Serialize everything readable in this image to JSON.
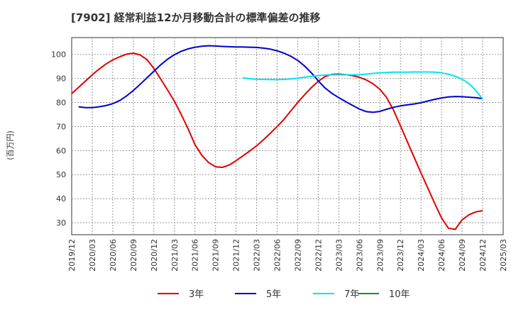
{
  "chart_data": {
    "type": "line",
    "title": "[7902]  経常利益12か月移動合計の標準偏差の推移",
    "ylabel": "(百万円)",
    "xlabel": "",
    "ylim": [
      25,
      107
    ],
    "yticks": [
      30,
      40,
      50,
      60,
      70,
      80,
      90,
      100
    ],
    "xticks": [
      "2019/12",
      "2020/03",
      "2020/06",
      "2020/09",
      "2020/12",
      "2021/03",
      "2021/06",
      "2021/09",
      "2021/12",
      "2022/03",
      "2022/06",
      "2022/09",
      "2022/12",
      "2023/03",
      "2023/06",
      "2023/09",
      "2023/12",
      "2024/03",
      "2024/06",
      "2024/09",
      "2024/12",
      "2025/03"
    ],
    "grid": true,
    "legend_position": "bottom",
    "series": [
      {
        "name": "3年",
        "color": "#e00000",
        "points": [
          [
            "2019/12",
            83.7
          ],
          [
            "2020/01",
            86.3
          ],
          [
            "2020/02",
            88.9
          ],
          [
            "2020/03",
            91.5
          ],
          [
            "2020/04",
            93.9
          ],
          [
            "2020/05",
            96.0
          ],
          [
            "2020/06",
            97.7
          ],
          [
            "2020/07",
            99.0
          ],
          [
            "2020/08",
            100.1
          ],
          [
            "2020/09",
            100.5
          ],
          [
            "2020/10",
            99.8
          ],
          [
            "2020/11",
            97.8
          ],
          [
            "2020/12",
            94.2
          ],
          [
            "2021/01",
            89.7
          ],
          [
            "2021/02",
            85.2
          ],
          [
            "2021/03",
            80.5
          ],
          [
            "2021/04",
            75.0
          ],
          [
            "2021/05",
            69.0
          ],
          [
            "2021/06",
            62.5
          ],
          [
            "2021/07",
            58.0
          ],
          [
            "2021/08",
            55.0
          ],
          [
            "2021/09",
            53.3
          ],
          [
            "2021/10",
            53.0
          ],
          [
            "2021/11",
            54.0
          ],
          [
            "2021/12",
            55.8
          ],
          [
            "2022/01",
            57.8
          ],
          [
            "2022/02",
            59.8
          ],
          [
            "2022/03",
            62.0
          ],
          [
            "2022/04",
            64.5
          ],
          [
            "2022/05",
            67.2
          ],
          [
            "2022/06",
            70.0
          ],
          [
            "2022/07",
            73.0
          ],
          [
            "2022/08",
            76.5
          ],
          [
            "2022/09",
            80.0
          ],
          [
            "2022/10",
            83.2
          ],
          [
            "2022/11",
            86.2
          ],
          [
            "2022/12",
            88.8
          ],
          [
            "2023/01",
            90.8
          ],
          [
            "2023/02",
            91.7
          ],
          [
            "2023/03",
            91.8
          ],
          [
            "2023/04",
            91.6
          ],
          [
            "2023/05",
            91.2
          ],
          [
            "2023/06",
            90.5
          ],
          [
            "2023/07",
            89.4
          ],
          [
            "2023/08",
            87.8
          ],
          [
            "2023/09",
            85.5
          ],
          [
            "2023/10",
            82.0
          ],
          [
            "2023/11",
            76.7
          ],
          [
            "2023/12",
            70.3
          ],
          [
            "2024/01",
            63.7
          ],
          [
            "2024/02",
            57.2
          ],
          [
            "2024/03",
            50.7
          ],
          [
            "2024/04",
            44.4
          ],
          [
            "2024/05",
            38.0
          ],
          [
            "2024/06",
            32.0
          ],
          [
            "2024/07",
            27.7
          ],
          [
            "2024/08",
            27.2
          ],
          [
            "2024/09",
            31.2
          ],
          [
            "2024/10",
            33.3
          ],
          [
            "2024/11",
            34.5
          ],
          [
            "2024/12",
            35.0
          ]
        ]
      },
      {
        "name": "5年",
        "color": "#0000cc",
        "points": [
          [
            "2020/01",
            78.2
          ],
          [
            "2020/02",
            77.9
          ],
          [
            "2020/03",
            77.9
          ],
          [
            "2020/04",
            78.2
          ],
          [
            "2020/05",
            78.7
          ],
          [
            "2020/06",
            79.5
          ],
          [
            "2020/07",
            80.8
          ],
          [
            "2020/08",
            82.7
          ],
          [
            "2020/09",
            85.0
          ],
          [
            "2020/10",
            87.6
          ],
          [
            "2020/11",
            90.3
          ],
          [
            "2020/12",
            93.0
          ],
          [
            "2021/01",
            95.7
          ],
          [
            "2021/02",
            98.0
          ],
          [
            "2021/03",
            99.9
          ],
          [
            "2021/04",
            101.3
          ],
          [
            "2021/05",
            102.3
          ],
          [
            "2021/06",
            103.0
          ],
          [
            "2021/07",
            103.4
          ],
          [
            "2021/08",
            103.6
          ],
          [
            "2021/09",
            103.5
          ],
          [
            "2021/10",
            103.3
          ],
          [
            "2021/11",
            103.2
          ],
          [
            "2021/12",
            103.1
          ],
          [
            "2022/01",
            103.1
          ],
          [
            "2022/02",
            103.0
          ],
          [
            "2022/03",
            102.9
          ],
          [
            "2022/04",
            102.6
          ],
          [
            "2022/05",
            102.2
          ],
          [
            "2022/06",
            101.5
          ],
          [
            "2022/07",
            100.5
          ],
          [
            "2022/08",
            99.2
          ],
          [
            "2022/09",
            97.5
          ],
          [
            "2022/10",
            95.2
          ],
          [
            "2022/11",
            92.3
          ],
          [
            "2022/12",
            89.0
          ],
          [
            "2023/01",
            86.0
          ],
          [
            "2023/02",
            83.8
          ],
          [
            "2023/03",
            82.0
          ],
          [
            "2023/04",
            80.4
          ],
          [
            "2023/05",
            78.8
          ],
          [
            "2023/06",
            77.3
          ],
          [
            "2023/07",
            76.2
          ],
          [
            "2023/08",
            75.9
          ],
          [
            "2023/09",
            76.3
          ],
          [
            "2023/10",
            77.2
          ],
          [
            "2023/11",
            78.0
          ],
          [
            "2023/12",
            78.6
          ],
          [
            "2024/01",
            79.0
          ],
          [
            "2024/02",
            79.4
          ],
          [
            "2024/03",
            79.9
          ],
          [
            "2024/04",
            80.6
          ],
          [
            "2024/05",
            81.3
          ],
          [
            "2024/06",
            81.9
          ],
          [
            "2024/07",
            82.3
          ],
          [
            "2024/08",
            82.5
          ],
          [
            "2024/09",
            82.4
          ],
          [
            "2024/10",
            82.2
          ],
          [
            "2024/11",
            82.0
          ],
          [
            "2024/12",
            81.6
          ]
        ]
      },
      {
        "name": "7年",
        "color": "#00e5ee",
        "points": [
          [
            "2022/01",
            90.3
          ],
          [
            "2022/02",
            89.9
          ],
          [
            "2022/03",
            89.7
          ],
          [
            "2022/04",
            89.6
          ],
          [
            "2022/05",
            89.5
          ],
          [
            "2022/06",
            89.5
          ],
          [
            "2022/07",
            89.6
          ],
          [
            "2022/08",
            89.8
          ],
          [
            "2022/09",
            90.1
          ],
          [
            "2022/10",
            90.5
          ],
          [
            "2022/11",
            90.9
          ],
          [
            "2022/12",
            91.2
          ],
          [
            "2023/01",
            91.4
          ],
          [
            "2023/02",
            91.5
          ],
          [
            "2023/03",
            91.5
          ],
          [
            "2023/04",
            91.5
          ],
          [
            "2023/05",
            91.5
          ],
          [
            "2023/06",
            91.6
          ],
          [
            "2023/07",
            91.8
          ],
          [
            "2023/08",
            92.1
          ],
          [
            "2023/09",
            92.3
          ],
          [
            "2023/10",
            92.5
          ],
          [
            "2023/11",
            92.6
          ],
          [
            "2023/12",
            92.6
          ],
          [
            "2024/01",
            92.6
          ],
          [
            "2024/02",
            92.7
          ],
          [
            "2024/03",
            92.7
          ],
          [
            "2024/04",
            92.7
          ],
          [
            "2024/05",
            92.6
          ],
          [
            "2024/06",
            92.3
          ],
          [
            "2024/07",
            91.8
          ],
          [
            "2024/08",
            90.9
          ],
          [
            "2024/09",
            89.7
          ],
          [
            "2024/10",
            87.9
          ],
          [
            "2024/11",
            85.0
          ],
          [
            "2024/12",
            81.5
          ]
        ]
      },
      {
        "name": "10年",
        "color": "#228b22",
        "points": []
      }
    ]
  }
}
